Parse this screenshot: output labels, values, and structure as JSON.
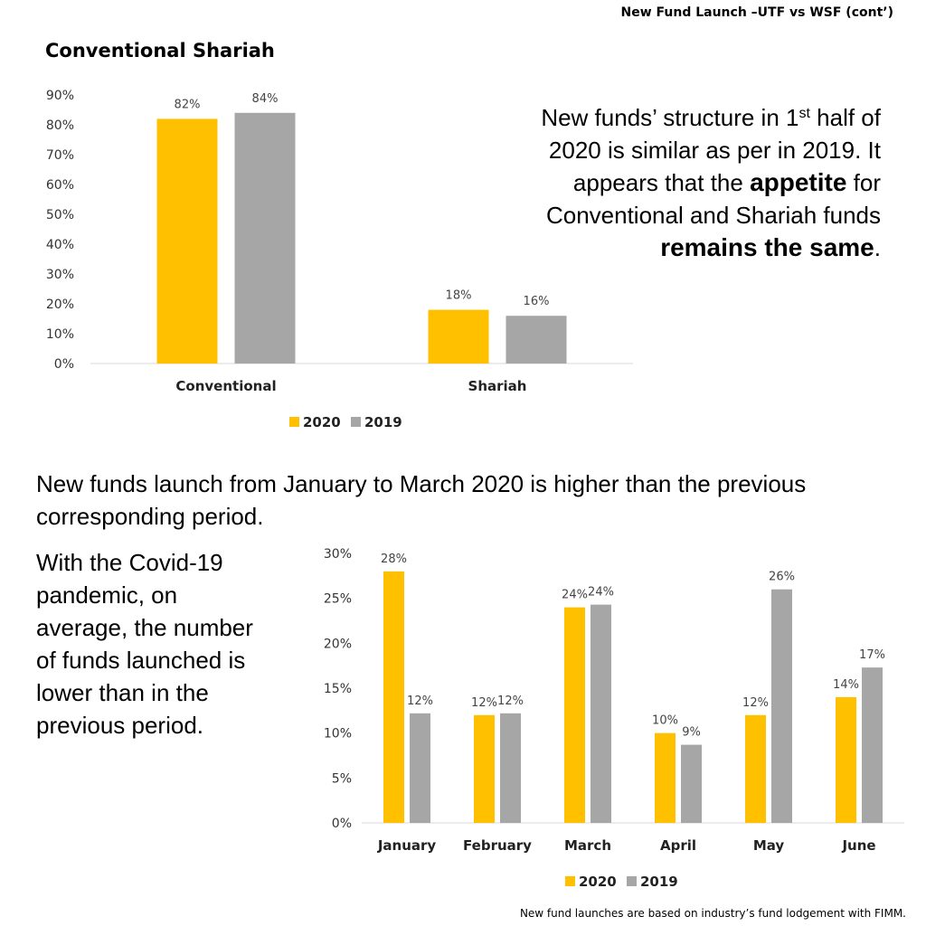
{
  "page": {
    "slide_title": "New Fund Launch –UTF vs WSF (cont’)",
    "note1": {
      "line1_pre": "New funds’ structure in 1",
      "line1_sup": "st",
      "line1_post": " half of",
      "line2": "2020 is similar as per in 2019.  It",
      "line3_pre": "appears that the ",
      "line3_bold": "appetite",
      "line3_post": " for",
      "line4": "Conventional and Shariah funds",
      "line5_bold": "remains the same",
      "line5_post": "."
    },
    "note2": "New funds launch from January to March 2020 is higher than the previous corresponding period.",
    "note3": "With the Covid-19 pandemic, on average, the number of funds launched is lower than in the previous period.",
    "footnote": "New fund launches are based on industry’s fund lodgement with FIMM."
  },
  "colors": {
    "y2020": "#FFC000",
    "y2019": "#A6A6A6",
    "axis": "#D9D9D9"
  },
  "chart_data": [
    {
      "type": "bar",
      "title": "Conventional Shariah",
      "categories": [
        "Conventional",
        "Shariah"
      ],
      "series": [
        {
          "name": "2020",
          "values": [
            82,
            18
          ],
          "labels": [
            "82%",
            "18%"
          ]
        },
        {
          "name": "2019",
          "values": [
            84,
            16
          ],
          "labels": [
            "84%",
            "16%"
          ]
        }
      ],
      "yticks": [
        "0%",
        "10%",
        "20%",
        "30%",
        "40%",
        "50%",
        "60%",
        "70%",
        "80%",
        "90%"
      ],
      "ylim": [
        0,
        90
      ],
      "grid": false,
      "legend": "bottom"
    },
    {
      "type": "bar",
      "title": "",
      "categories": [
        "January",
        "February",
        "March",
        "April",
        "May",
        "June"
      ],
      "series": [
        {
          "name": "2020",
          "values": [
            28,
            12,
            24,
            10,
            12,
            14
          ],
          "labels": [
            "28%",
            "12%",
            "24%",
            "10%",
            "12%",
            "14%"
          ]
        },
        {
          "name": "2019",
          "values": [
            12.2,
            12.2,
            24.3,
            8.7,
            26,
            17.3
          ],
          "labels": [
            "12%",
            "12%",
            "24%",
            "9%",
            "26%",
            "17%"
          ]
        }
      ],
      "yticks": [
        "0%",
        "5%",
        "10%",
        "15%",
        "20%",
        "25%",
        "30%"
      ],
      "ylim": [
        0,
        30
      ],
      "grid": false,
      "legend": "bottom"
    }
  ]
}
